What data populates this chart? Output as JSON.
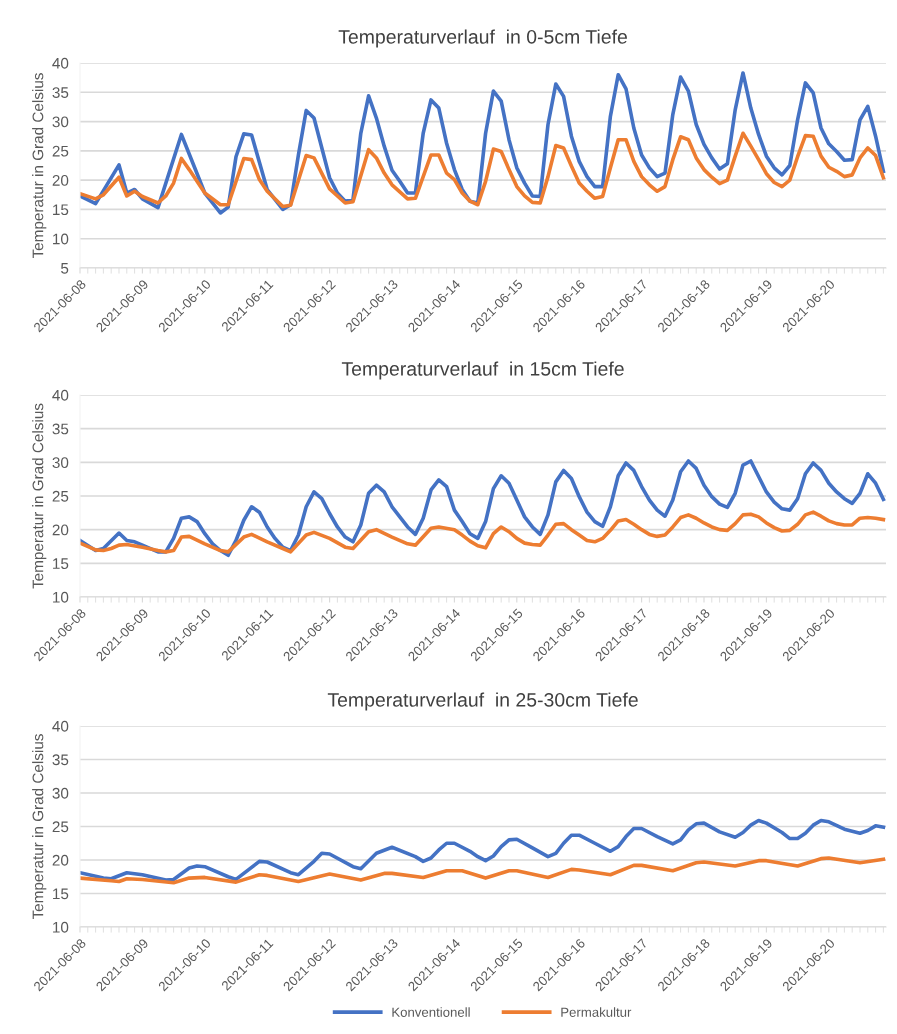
{
  "chart_data": [
    {
      "type": "line",
      "title": "Temperaturverlauf  in 0-5cm Tiefe",
      "ylabel": "Temperatur in Grad Celsius",
      "xlim": [
        "2021-06-08T00:00",
        "2021-06-20T22:00"
      ],
      "ylim": [
        5,
        40
      ],
      "yticks": [
        5,
        10,
        15,
        20,
        25,
        30,
        35,
        40
      ],
      "xticks": [
        "2021-06-08",
        "2021-06-09",
        "2021-06-10",
        "2021-06-11",
        "2021-06-12",
        "2021-06-13",
        "2021-06-14",
        "2021-06-15",
        "2021-06-16",
        "2021-06-17",
        "2021-06-18",
        "2021-06-19",
        "2021-06-20"
      ],
      "grid": "y",
      "legend": false,
      "marker": "none",
      "line_style": "solid",
      "series": [
        {
          "color": "#4472c4",
          "x": [
            "2021-06-08T00:00",
            "2021-06-08T06:00",
            "2021-06-08T15:00",
            "2021-06-08T18:00",
            "2021-06-08T21:00",
            "2021-06-09T00:00",
            "2021-06-09T06:00",
            "2021-06-09T15:00",
            "2021-06-10T00:00",
            "2021-06-10T06:00",
            "2021-06-10T09:00",
            "2021-06-10T12:00",
            "2021-06-10T15:00",
            "2021-06-10T18:00",
            "2021-06-11T00:00",
            "2021-06-11T06:00",
            "2021-06-11T09:00",
            "2021-06-11T12:00",
            "2021-06-11T15:00",
            "2021-06-11T18:00",
            "2021-06-12T00:00",
            "2021-06-12T03:00",
            "2021-06-12T06:00",
            "2021-06-12T09:00",
            "2021-06-12T12:00",
            "2021-06-12T15:00",
            "2021-06-12T18:00",
            "2021-06-12T21:00",
            "2021-06-13T00:00",
            "2021-06-13T03:00",
            "2021-06-13T06:00",
            "2021-06-13T09:00",
            "2021-06-13T12:00",
            "2021-06-13T15:00",
            "2021-06-13T18:00",
            "2021-06-13T21:00",
            "2021-06-14T00:00",
            "2021-06-14T03:00",
            "2021-06-14T06:00",
            "2021-06-14T09:00",
            "2021-06-14T12:00",
            "2021-06-14T15:00",
            "2021-06-14T18:00",
            "2021-06-14T21:00",
            "2021-06-15T00:00",
            "2021-06-15T03:00",
            "2021-06-15T06:00",
            "2021-06-15T09:00",
            "2021-06-15T12:00",
            "2021-06-15T15:00",
            "2021-06-15T18:00",
            "2021-06-15T21:00",
            "2021-06-16T00:00",
            "2021-06-16T03:00",
            "2021-06-16T06:00",
            "2021-06-16T09:00",
            "2021-06-16T12:00",
            "2021-06-16T15:00",
            "2021-06-16T18:00",
            "2021-06-16T21:00",
            "2021-06-17T00:00",
            "2021-06-17T03:00",
            "2021-06-17T06:00",
            "2021-06-17T09:00",
            "2021-06-17T12:00",
            "2021-06-17T15:00",
            "2021-06-17T18:00",
            "2021-06-17T21:00",
            "2021-06-18T00:00",
            "2021-06-18T03:00",
            "2021-06-18T06:00",
            "2021-06-18T09:00",
            "2021-06-18T12:00",
            "2021-06-18T15:00",
            "2021-06-18T18:00",
            "2021-06-18T21:00",
            "2021-06-19T00:00",
            "2021-06-19T03:00",
            "2021-06-19T06:00",
            "2021-06-19T09:00",
            "2021-06-19T12:00",
            "2021-06-19T15:00",
            "2021-06-19T18:00",
            "2021-06-19T21:00",
            "2021-06-20T00:00",
            "2021-06-20T03:00",
            "2021-06-20T06:00",
            "2021-06-20T09:00",
            "2021-06-20T12:00",
            "2021-06-20T15:00",
            "2021-06-20T18:00",
            "2021-06-20T21:00"
          ],
          "values": [
            17.3,
            16.0,
            22.6,
            17.8,
            18.4,
            16.8,
            15.3,
            27.8,
            17.8,
            14.4,
            15.4,
            24.0,
            27.9,
            27.7,
            18.4,
            15.0,
            15.8,
            24.3,
            31.9,
            30.6,
            20.4,
            17.8,
            16.4,
            16.7,
            28.0,
            34.4,
            30.6,
            25.8,
            21.7,
            19.8,
            17.8,
            17.8,
            28.0,
            33.7,
            32.3,
            26.3,
            21.8,
            18.4,
            16.4,
            16.1,
            28.0,
            35.2,
            33.5,
            26.9,
            22.1,
            19.5,
            17.3,
            17.2,
            29.5,
            36.4,
            34.3,
            27.5,
            23.2,
            20.6,
            18.9,
            18.9,
            30.9,
            38.0,
            35.6,
            28.9,
            24.3,
            22.1,
            20.6,
            21.2,
            31.2,
            37.6,
            35.2,
            29.5,
            26.1,
            23.8,
            21.9,
            22.8,
            32.0,
            38.3,
            32.3,
            27.8,
            24.1,
            22.1,
            20.9,
            22.5,
            30.3,
            36.6,
            34.9,
            28.9,
            26.2,
            24.9,
            23.4,
            23.5,
            30.3,
            32.6,
            27.5,
            21.5
          ]
        },
        {
          "color": "#ed7d31",
          "x": [
            "2021-06-08T00:00",
            "2021-06-08T06:00",
            "2021-06-08T09:00",
            "2021-06-08T15:00",
            "2021-06-08T18:00",
            "2021-06-08T21:00",
            "2021-06-09T00:00",
            "2021-06-09T06:00",
            "2021-06-09T09:00",
            "2021-06-09T12:00",
            "2021-06-09T15:00",
            "2021-06-09T18:00",
            "2021-06-10T00:00",
            "2021-06-10T06:00",
            "2021-06-10T09:00",
            "2021-06-10T15:00",
            "2021-06-10T18:00",
            "2021-06-10T21:00",
            "2021-06-11T00:00",
            "2021-06-11T06:00",
            "2021-06-11T09:00",
            "2021-06-11T15:00",
            "2021-06-11T18:00",
            "2021-06-12T00:00",
            "2021-06-12T06:00",
            "2021-06-12T09:00",
            "2021-06-12T15:00",
            "2021-06-12T18:00",
            "2021-06-12T21:00",
            "2021-06-13T00:00",
            "2021-06-13T06:00",
            "2021-06-13T09:00",
            "2021-06-13T15:00",
            "2021-06-13T18:00",
            "2021-06-13T21:00",
            "2021-06-14T00:00",
            "2021-06-14T03:00",
            "2021-06-14T06:00",
            "2021-06-14T09:00",
            "2021-06-14T12:00",
            "2021-06-14T15:00",
            "2021-06-14T18:00",
            "2021-06-14T21:00",
            "2021-06-15T00:00",
            "2021-06-15T03:00",
            "2021-06-15T06:00",
            "2021-06-15T09:00",
            "2021-06-15T12:00",
            "2021-06-15T15:00",
            "2021-06-15T18:00",
            "2021-06-15T21:00",
            "2021-06-16T00:00",
            "2021-06-16T03:00",
            "2021-06-16T06:00",
            "2021-06-16T09:00",
            "2021-06-16T12:00",
            "2021-06-16T15:00",
            "2021-06-16T18:00",
            "2021-06-16T21:00",
            "2021-06-17T00:00",
            "2021-06-17T03:00",
            "2021-06-17T06:00",
            "2021-06-17T09:00",
            "2021-06-17T12:00",
            "2021-06-17T15:00",
            "2021-06-17T18:00",
            "2021-06-17T21:00",
            "2021-06-18T00:00",
            "2021-06-18T03:00",
            "2021-06-18T06:00",
            "2021-06-18T09:00",
            "2021-06-18T12:00",
            "2021-06-18T15:00",
            "2021-06-18T18:00",
            "2021-06-18T21:00",
            "2021-06-19T00:00",
            "2021-06-19T03:00",
            "2021-06-19T06:00",
            "2021-06-19T09:00",
            "2021-06-19T12:00",
            "2021-06-19T15:00",
            "2021-06-19T18:00",
            "2021-06-19T21:00",
            "2021-06-20T00:00",
            "2021-06-20T03:00",
            "2021-06-20T06:00",
            "2021-06-20T09:00",
            "2021-06-20T12:00",
            "2021-06-20T15:00",
            "2021-06-20T18:00",
            "2021-06-20T21:00"
          ],
          "values": [
            17.7,
            16.8,
            17.5,
            20.5,
            17.3,
            18.1,
            17.2,
            16.1,
            17.3,
            19.5,
            23.7,
            21.8,
            17.8,
            15.8,
            15.8,
            23.7,
            23.5,
            20.1,
            18.1,
            15.5,
            15.7,
            24.2,
            23.8,
            18.5,
            16.1,
            16.3,
            25.2,
            23.8,
            21.2,
            19.2,
            16.8,
            16.9,
            24.3,
            24.3,
            21.2,
            20.1,
            17.8,
            16.4,
            15.8,
            19.8,
            25.3,
            24.9,
            21.8,
            18.9,
            17.3,
            16.2,
            16.1,
            20.6,
            25.9,
            25.5,
            22.4,
            19.5,
            18.1,
            16.9,
            17.2,
            22.1,
            26.9,
            26.9,
            23.2,
            20.6,
            19.2,
            18.1,
            18.9,
            23.5,
            27.4,
            26.9,
            23.8,
            21.8,
            20.5,
            19.4,
            20.0,
            24.1,
            28.0,
            25.8,
            23.5,
            21.1,
            19.6,
            18.9,
            20.0,
            24.0,
            27.6,
            27.5,
            24.1,
            22.2,
            21.5,
            20.6,
            20.9,
            23.8,
            25.5,
            24.2,
            20.4
          ]
        }
      ]
    },
    {
      "type": "line",
      "title": "Temperaturverlauf  in 15cm Tiefe",
      "ylabel": "Temperatur in Grad Celsius",
      "xlim": [
        "2021-06-08T00:00",
        "2021-06-20T22:00"
      ],
      "ylim": [
        10,
        40
      ],
      "yticks": [
        10,
        15,
        20,
        25,
        30,
        35,
        40
      ],
      "xticks": [
        "2021-06-08",
        "2021-06-09",
        "2021-06-10",
        "2021-06-11",
        "2021-06-12",
        "2021-06-13",
        "2021-06-14",
        "2021-06-15",
        "2021-06-16",
        "2021-06-17",
        "2021-06-18",
        "2021-06-19",
        "2021-06-20"
      ],
      "grid": "y",
      "legend": false,
      "marker": "none",
      "line_style": "solid",
      "series": [
        {
          "color": "#4472c4",
          "x": [
            "2021-06-08T00:00",
            "2021-06-08T06:00",
            "2021-06-08T09:00",
            "2021-06-08T15:00",
            "2021-06-08T18:00",
            "2021-06-08T21:00",
            "2021-06-09T00:00",
            "2021-06-09T06:00",
            "2021-06-09T09:00",
            "2021-06-09T12:00",
            "2021-06-09T15:00",
            "2021-06-09T18:00",
            "2021-06-09T21:00",
            "2021-06-10T00:00",
            "2021-06-10T03:00",
            "2021-06-10T06:00",
            "2021-06-10T09:00",
            "2021-06-10T12:00",
            "2021-06-10T15:00",
            "2021-06-10T18:00",
            "2021-06-10T21:00",
            "2021-06-11T00:00",
            "2021-06-11T03:00",
            "2021-06-11T06:00",
            "2021-06-11T09:00",
            "2021-06-11T12:00",
            "2021-06-11T15:00",
            "2021-06-11T18:00",
            "2021-06-11T21:00",
            "2021-06-12T00:00",
            "2021-06-12T03:00",
            "2021-06-12T06:00",
            "2021-06-12T09:00",
            "2021-06-12T12:00",
            "2021-06-12T15:00",
            "2021-06-12T18:00",
            "2021-06-12T21:00",
            "2021-06-13T00:00",
            "2021-06-13T03:00",
            "2021-06-13T06:00",
            "2021-06-13T09:00",
            "2021-06-13T12:00",
            "2021-06-13T15:00",
            "2021-06-13T18:00",
            "2021-06-13T21:00",
            "2021-06-14T00:00",
            "2021-06-14T03:00",
            "2021-06-14T06:00",
            "2021-06-14T09:00",
            "2021-06-14T12:00",
            "2021-06-14T15:00",
            "2021-06-14T18:00",
            "2021-06-14T21:00",
            "2021-06-15T00:00",
            "2021-06-15T03:00",
            "2021-06-15T06:00",
            "2021-06-15T09:00",
            "2021-06-15T12:00",
            "2021-06-15T15:00",
            "2021-06-15T18:00",
            "2021-06-15T21:00",
            "2021-06-16T00:00",
            "2021-06-16T03:00",
            "2021-06-16T06:00",
            "2021-06-16T09:00",
            "2021-06-16T12:00",
            "2021-06-16T15:00",
            "2021-06-16T18:00",
            "2021-06-16T21:00",
            "2021-06-17T00:00",
            "2021-06-17T03:00",
            "2021-06-17T06:00",
            "2021-06-17T09:00",
            "2021-06-17T12:00",
            "2021-06-17T15:00",
            "2021-06-17T18:00",
            "2021-06-17T21:00",
            "2021-06-18T00:00",
            "2021-06-18T03:00",
            "2021-06-18T06:00",
            "2021-06-18T09:00",
            "2021-06-18T12:00",
            "2021-06-18T15:00",
            "2021-06-18T18:00",
            "2021-06-18T21:00",
            "2021-06-19T00:00",
            "2021-06-19T03:00",
            "2021-06-19T06:00",
            "2021-06-19T09:00",
            "2021-06-19T12:00",
            "2021-06-19T15:00",
            "2021-06-19T18:00",
            "2021-06-19T21:00",
            "2021-06-20T00:00",
            "2021-06-20T03:00",
            "2021-06-20T06:00",
            "2021-06-20T09:00",
            "2021-06-20T12:00",
            "2021-06-20T15:00",
            "2021-06-20T18:00",
            "2021-06-20T21:00"
          ],
          "values": [
            18.4,
            16.9,
            17.2,
            19.5,
            18.4,
            18.2,
            17.7,
            16.7,
            16.7,
            18.7,
            21.7,
            21.9,
            21.2,
            19.4,
            17.9,
            16.9,
            16.2,
            18.4,
            21.4,
            23.4,
            22.6,
            20.4,
            18.7,
            17.4,
            16.9,
            19.2,
            23.4,
            25.6,
            24.6,
            22.4,
            20.4,
            18.9,
            18.2,
            20.7,
            25.4,
            26.6,
            25.6,
            23.4,
            21.9,
            20.4,
            19.3,
            21.7,
            25.9,
            27.4,
            26.4,
            22.9,
            21.2,
            19.4,
            18.7,
            21.2,
            26.1,
            28.0,
            26.9,
            24.4,
            21.9,
            20.4,
            19.3,
            22.2,
            27.1,
            28.8,
            27.6,
            24.9,
            22.6,
            21.2,
            20.5,
            23.4,
            28.0,
            29.9,
            28.8,
            26.4,
            24.4,
            22.9,
            22.0,
            24.4,
            28.6,
            30.2,
            29.1,
            26.6,
            24.9,
            23.8,
            23.3,
            25.4,
            29.6,
            30.2,
            27.9,
            25.6,
            24.1,
            23.1,
            22.9,
            24.6,
            28.3,
            29.9,
            28.8,
            26.9,
            25.6,
            24.6,
            23.9,
            25.4,
            28.3,
            26.9,
            24.5
          ]
        },
        {
          "color": "#ed7d31",
          "x": [
            "2021-06-08T00:00",
            "2021-06-08T06:00",
            "2021-06-08T09:00",
            "2021-06-08T12:00",
            "2021-06-08T15:00",
            "2021-06-08T18:00",
            "2021-06-09T00:00",
            "2021-06-09T06:00",
            "2021-06-09T09:00",
            "2021-06-09T12:00",
            "2021-06-09T15:00",
            "2021-06-09T18:00",
            "2021-06-10T00:00",
            "2021-06-10T06:00",
            "2021-06-10T09:00",
            "2021-06-10T15:00",
            "2021-06-10T18:00",
            "2021-06-11T00:00",
            "2021-06-11T06:00",
            "2021-06-11T09:00",
            "2021-06-11T15:00",
            "2021-06-11T18:00",
            "2021-06-12T00:00",
            "2021-06-12T06:00",
            "2021-06-12T09:00",
            "2021-06-12T15:00",
            "2021-06-12T18:00",
            "2021-06-13T00:00",
            "2021-06-13T06:00",
            "2021-06-13T09:00",
            "2021-06-13T15:00",
            "2021-06-13T18:00",
            "2021-06-14T00:00",
            "2021-06-14T03:00",
            "2021-06-14T06:00",
            "2021-06-14T09:00",
            "2021-06-14T12:00",
            "2021-06-14T15:00",
            "2021-06-14T18:00",
            "2021-06-14T21:00",
            "2021-06-15T00:00",
            "2021-06-15T03:00",
            "2021-06-15T06:00",
            "2021-06-15T09:00",
            "2021-06-15T12:00",
            "2021-06-15T15:00",
            "2021-06-15T18:00",
            "2021-06-15T21:00",
            "2021-06-16T00:00",
            "2021-06-16T03:00",
            "2021-06-16T06:00",
            "2021-06-16T09:00",
            "2021-06-16T12:00",
            "2021-06-16T15:00",
            "2021-06-16T18:00",
            "2021-06-16T21:00",
            "2021-06-17T00:00",
            "2021-06-17T03:00",
            "2021-06-17T06:00",
            "2021-06-17T09:00",
            "2021-06-17T12:00",
            "2021-06-17T15:00",
            "2021-06-17T18:00",
            "2021-06-17T21:00",
            "2021-06-18T00:00",
            "2021-06-18T03:00",
            "2021-06-18T06:00",
            "2021-06-18T09:00",
            "2021-06-18T12:00",
            "2021-06-18T15:00",
            "2021-06-18T18:00",
            "2021-06-18T21:00",
            "2021-06-19T00:00",
            "2021-06-19T03:00",
            "2021-06-19T06:00",
            "2021-06-19T09:00",
            "2021-06-19T12:00",
            "2021-06-19T15:00",
            "2021-06-19T18:00",
            "2021-06-19T21:00",
            "2021-06-20T00:00",
            "2021-06-20T03:00",
            "2021-06-20T06:00",
            "2021-06-20T09:00",
            "2021-06-20T12:00",
            "2021-06-20T15:00",
            "2021-06-20T18:00",
            "2021-06-20T21:00"
          ],
          "values": [
            18.0,
            17.0,
            16.9,
            17.2,
            17.7,
            17.8,
            17.4,
            16.9,
            16.7,
            16.9,
            18.9,
            19.0,
            17.9,
            16.9,
            16.7,
            18.9,
            19.3,
            18.2,
            17.2,
            16.7,
            19.2,
            19.6,
            18.7,
            17.4,
            17.2,
            19.7,
            20.0,
            18.9,
            17.9,
            17.7,
            20.2,
            20.4,
            20.0,
            19.2,
            18.3,
            17.6,
            17.3,
            19.4,
            20.4,
            19.7,
            18.7,
            18.0,
            17.8,
            17.7,
            19.2,
            20.8,
            20.9,
            20.0,
            19.2,
            18.4,
            18.2,
            18.7,
            19.9,
            21.3,
            21.5,
            20.8,
            20.0,
            19.3,
            19.0,
            19.2,
            20.4,
            21.8,
            22.2,
            21.7,
            21.0,
            20.4,
            20.0,
            19.9,
            20.9,
            22.2,
            22.3,
            21.9,
            21.0,
            20.3,
            19.8,
            19.9,
            20.8,
            22.2,
            22.6,
            22.0,
            21.3,
            20.9,
            20.7,
            20.7,
            21.7,
            21.8,
            21.7,
            21.5
          ]
        }
      ]
    },
    {
      "type": "line",
      "title": "Temperaturverlauf  in 25-30cm Tiefe",
      "ylabel": "Temperatur in Grad Celsius",
      "xlim": [
        "2021-06-08T00:00",
        "2021-06-20T22:00"
      ],
      "ylim": [
        10,
        40
      ],
      "yticks": [
        10,
        15,
        20,
        25,
        30,
        35,
        40
      ],
      "xticks": [
        "2021-06-08",
        "2021-06-09",
        "2021-06-10",
        "2021-06-11",
        "2021-06-12",
        "2021-06-13",
        "2021-06-14",
        "2021-06-15",
        "2021-06-16",
        "2021-06-17",
        "2021-06-18",
        "2021-06-19",
        "2021-06-20"
      ],
      "grid": "y",
      "legend": "bottom",
      "marker": "none",
      "line_style": "solid",
      "series": [
        {
          "name": "Konventionell",
          "color": "#4472c4",
          "x": [
            "2021-06-08T00:00",
            "2021-06-08T09:00",
            "2021-06-08T12:00",
            "2021-06-08T18:00",
            "2021-06-09T00:00",
            "2021-06-09T09:00",
            "2021-06-09T12:00",
            "2021-06-09T18:00",
            "2021-06-09T21:00",
            "2021-06-10T00:00",
            "2021-06-10T09:00",
            "2021-06-10T12:00",
            "2021-06-10T21:00",
            "2021-06-11T00:00",
            "2021-06-11T09:00",
            "2021-06-11T12:00",
            "2021-06-11T18:00",
            "2021-06-11T21:00",
            "2021-06-12T00:00",
            "2021-06-12T09:00",
            "2021-06-12T12:00",
            "2021-06-12T18:00",
            "2021-06-13T00:00",
            "2021-06-13T09:00",
            "2021-06-13T12:00",
            "2021-06-13T15:00",
            "2021-06-13T18:00",
            "2021-06-13T21:00",
            "2021-06-14T00:00",
            "2021-06-14T06:00",
            "2021-06-14T09:00",
            "2021-06-14T12:00",
            "2021-06-14T15:00",
            "2021-06-14T18:00",
            "2021-06-14T21:00",
            "2021-06-15T00:00",
            "2021-06-15T06:00",
            "2021-06-15T12:00",
            "2021-06-15T15:00",
            "2021-06-15T18:00",
            "2021-06-15T21:00",
            "2021-06-16T00:00",
            "2021-06-16T06:00",
            "2021-06-16T12:00",
            "2021-06-16T15:00",
            "2021-06-16T18:00",
            "2021-06-16T21:00",
            "2021-06-17T00:00",
            "2021-06-17T06:00",
            "2021-06-17T12:00",
            "2021-06-17T15:00",
            "2021-06-17T18:00",
            "2021-06-17T21:00",
            "2021-06-18T00:00",
            "2021-06-18T06:00",
            "2021-06-18T12:00",
            "2021-06-18T15:00",
            "2021-06-18T18:00",
            "2021-06-18T21:00",
            "2021-06-19T00:00",
            "2021-06-19T06:00",
            "2021-06-19T09:00",
            "2021-06-19T12:00",
            "2021-06-19T15:00",
            "2021-06-19T18:00",
            "2021-06-19T21:00",
            "2021-06-20T00:00",
            "2021-06-20T06:00",
            "2021-06-20T12:00",
            "2021-06-20T15:00",
            "2021-06-20T18:00",
            "2021-06-20T21:00"
          ],
          "values": [
            18.1,
            17.3,
            17.2,
            18.1,
            17.8,
            17.0,
            17.1,
            18.8,
            19.1,
            19.0,
            17.5,
            17.1,
            19.8,
            19.7,
            18.1,
            17.8,
            19.8,
            21.0,
            20.9,
            19.0,
            18.7,
            21.0,
            21.9,
            20.5,
            19.8,
            20.3,
            21.5,
            22.5,
            22.5,
            21.3,
            20.5,
            19.9,
            20.6,
            22.0,
            23.0,
            23.1,
            21.8,
            20.5,
            21.0,
            22.5,
            23.7,
            23.7,
            22.5,
            21.3,
            22.0,
            23.5,
            24.7,
            24.7,
            23.5,
            22.4,
            23.0,
            24.5,
            25.4,
            25.5,
            24.2,
            23.4,
            24.1,
            25.2,
            25.9,
            25.5,
            24.1,
            23.2,
            23.2,
            24.0,
            25.2,
            25.9,
            25.7,
            24.6,
            24.0,
            24.4,
            25.1,
            24.9
          ]
        },
        {
          "name": "Permakultur",
          "color": "#ed7d31",
          "x": [
            "2021-06-08T00:00",
            "2021-06-08T12:00",
            "2021-06-08T15:00",
            "2021-06-08T18:00",
            "2021-06-09T00:00",
            "2021-06-09T12:00",
            "2021-06-09T18:00",
            "2021-06-10T00:00",
            "2021-06-10T12:00",
            "2021-06-10T21:00",
            "2021-06-11T00:00",
            "2021-06-11T12:00",
            "2021-06-12T00:00",
            "2021-06-12T12:00",
            "2021-06-12T21:00",
            "2021-06-13T00:00",
            "2021-06-13T12:00",
            "2021-06-13T21:00",
            "2021-06-14T03:00",
            "2021-06-14T12:00",
            "2021-06-14T21:00",
            "2021-06-15T00:00",
            "2021-06-15T12:00",
            "2021-06-15T21:00",
            "2021-06-16T00:00",
            "2021-06-16T12:00",
            "2021-06-16T21:00",
            "2021-06-17T00:00",
            "2021-06-17T12:00",
            "2021-06-17T21:00",
            "2021-06-18T00:00",
            "2021-06-18T12:00",
            "2021-06-18T21:00",
            "2021-06-19T00:00",
            "2021-06-19T12:00",
            "2021-06-19T21:00",
            "2021-06-20T00:00",
            "2021-06-20T12:00",
            "2021-06-20T21:00"
          ],
          "values": [
            17.3,
            16.9,
            16.8,
            17.2,
            17.1,
            16.6,
            17.3,
            17.4,
            16.7,
            17.8,
            17.7,
            16.8,
            17.9,
            17.0,
            18.0,
            18.0,
            17.4,
            18.4,
            18.4,
            17.3,
            18.4,
            18.4,
            17.4,
            18.6,
            18.5,
            17.8,
            19.2,
            19.2,
            18.4,
            19.6,
            19.7,
            19.1,
            19.9,
            19.9,
            19.1,
            20.2,
            20.3,
            19.6,
            20.1
          ]
        }
      ]
    }
  ]
}
